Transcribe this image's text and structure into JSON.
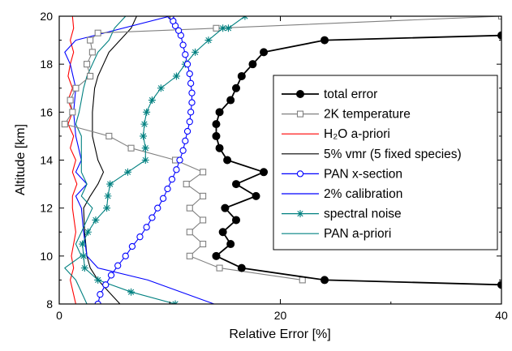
{
  "chart_data": {
    "type": "line",
    "xlabel": "Relative Error [%]",
    "ylabel": "Altitude [km]",
    "xlim": [
      0,
      40
    ],
    "ylim": [
      8,
      20
    ],
    "xticks": [
      0,
      20,
      40
    ],
    "yticks": [
      8,
      10,
      12,
      14,
      16,
      18,
      20
    ],
    "grid": false,
    "legend": "center-right",
    "series": [
      {
        "name": "total error",
        "color": "#000000",
        "marker": "filled-circle",
        "x": [
          40,
          24,
          16.5,
          14.2,
          15.5,
          14.8,
          16,
          15,
          17.8,
          16,
          18.5,
          15.2,
          14.5,
          14.2,
          14.2,
          14.5,
          15.5,
          16,
          16.5,
          17.5,
          18.5,
          24,
          40
        ],
        "y": [
          8.8,
          9,
          9.5,
          10,
          10.5,
          11,
          11.5,
          12,
          12.5,
          13,
          13.5,
          14,
          14.5,
          15,
          15.5,
          16,
          16.5,
          17,
          17.5,
          18,
          18.5,
          19,
          19.2
        ]
      },
      {
        "name": "2K temperature",
        "color": "#808080",
        "marker": "open-square",
        "x": [
          22,
          14.5,
          11.8,
          13,
          11.8,
          13,
          11.8,
          13,
          11.5,
          13,
          10.5,
          6.5,
          4.5,
          0.5,
          1.2,
          1,
          1.5,
          2.8,
          2.5,
          3,
          2.8,
          3.5,
          14.2,
          40
        ],
        "y": [
          9,
          9.5,
          10,
          10.5,
          11,
          11.5,
          12,
          12.5,
          13,
          13.5,
          14,
          14.5,
          15,
          15.5,
          16,
          16.5,
          17,
          17.5,
          18,
          18.5,
          19,
          19.3,
          19.5,
          20
        ]
      },
      {
        "name": "H₂O a-priori",
        "color": "#ff0000",
        "marker": "none",
        "x": [
          1.5,
          1,
          1.3,
          1.1,
          1.5,
          1.2,
          1.2,
          1.6,
          1.2,
          1.5,
          1,
          1.3,
          0.8,
          1.2,
          0.8,
          1.2,
          0.8,
          1,
          1.3,
          1,
          1.3,
          1.2
        ],
        "y": [
          8,
          9,
          9.5,
          10,
          11,
          12,
          12.5,
          13,
          13.5,
          14,
          14.5,
          15,
          15.5,
          16,
          16.5,
          17,
          17.5,
          18,
          18.5,
          19,
          19.5,
          20
        ]
      },
      {
        "name": "5% vmr (5 fixed species)",
        "color": "#000000",
        "marker": "none",
        "x": [
          5.5,
          4.5,
          3.5,
          2.8,
          2.5,
          2.3,
          2.2,
          2.8,
          3.5,
          4,
          3.5,
          3,
          3,
          3.2,
          3.5,
          4,
          4.5,
          5.5,
          6.5,
          7
        ],
        "y": [
          8,
          8.5,
          9,
          9.5,
          10,
          11,
          12,
          12.5,
          13,
          13.5,
          14,
          15,
          16,
          17,
          17.5,
          18,
          18.5,
          19,
          19.5,
          20
        ]
      },
      {
        "name": "PAN x-section",
        "color": "#0000ff",
        "marker": "open-circle",
        "x": [
          3.5,
          3.7,
          4.2,
          4.7,
          5.3,
          6,
          6.6,
          7.3,
          7.9,
          8.4,
          8.9,
          9.4,
          9.8,
          10.2,
          10.6,
          10.9,
          11.2,
          11.4,
          11.6,
          11.8,
          11.9,
          12,
          12,
          11.9,
          11.8,
          11.6,
          11.4,
          11.2,
          11,
          10.8,
          10.5,
          10.3,
          10.1
        ],
        "y": [
          8,
          8.4,
          8.8,
          9.2,
          9.6,
          10,
          10.4,
          10.8,
          11.2,
          11.6,
          12,
          12.4,
          12.8,
          13.2,
          13.6,
          14,
          14.4,
          14.8,
          15.2,
          15.6,
          16,
          16.4,
          16.8,
          17.2,
          17.6,
          18,
          18.4,
          18.8,
          19.2,
          19.4,
          19.6,
          19.8,
          20
        ]
      },
      {
        "name": "2% calibration",
        "color": "#0000ff",
        "marker": "none",
        "x": [
          14,
          8,
          3.5,
          2.5,
          2.2,
          2,
          1.5,
          2.5,
          1.5,
          2,
          1.5,
          1.3,
          1.5,
          1,
          0.5,
          1.5,
          10
        ],
        "y": [
          8,
          9,
          9.5,
          10,
          11,
          12,
          12.5,
          13,
          13.5,
          14,
          15,
          16,
          17,
          18,
          18.5,
          19,
          20
        ]
      },
      {
        "name": "spectral noise",
        "color": "#008080",
        "marker": "asterisk",
        "x": [
          10.5,
          6.5,
          3.5,
          2.3,
          2.2,
          2.1,
          2.6,
          3.3,
          4.3,
          4.4,
          4.6,
          6.2,
          7.8,
          7.8,
          7.6,
          7.7,
          7.9,
          8.4,
          9.2,
          10.6,
          11.4,
          12.3,
          13.5,
          14.8,
          15.3,
          16.8
        ],
        "y": [
          8,
          8.5,
          9,
          9.5,
          10,
          10.5,
          11,
          11.5,
          12,
          12.5,
          13,
          13.5,
          14,
          14.5,
          15,
          15.5,
          16,
          16.5,
          17,
          17.5,
          18,
          18.5,
          19,
          19.5,
          19.5,
          20
        ]
      },
      {
        "name": "PAN a-priori",
        "color": "#008080",
        "marker": "none",
        "x": [
          2.5,
          1.5,
          0.5,
          2,
          1.5,
          2,
          3,
          2,
          2.5,
          2,
          2,
          2,
          1.5,
          1.8,
          2,
          2.2,
          2.5,
          3,
          3.5,
          4.5,
          5,
          6
        ],
        "y": [
          8,
          9,
          9.5,
          10,
          10.5,
          11,
          12,
          12.5,
          13,
          13.5,
          14,
          15,
          15.5,
          16,
          16.5,
          17,
          17.5,
          18,
          18.5,
          19,
          19.5,
          20
        ]
      }
    ]
  }
}
